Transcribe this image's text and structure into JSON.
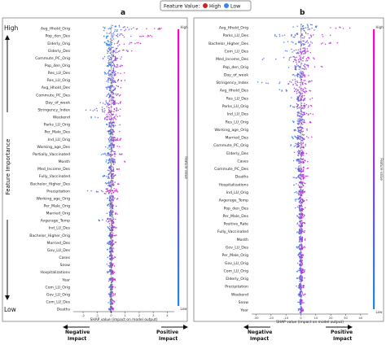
{
  "legend": {
    "title": "Feature Value:",
    "items": [
      {
        "label": "High",
        "color": "#d61f1f"
      },
      {
        "label": "Low",
        "color": "#3b82f6"
      }
    ]
  },
  "importance_axis": {
    "high": "High",
    "title": "Feature Importance",
    "low": "Low"
  },
  "impact_labels": {
    "negative": [
      "Negative",
      "Impact"
    ],
    "positive": [
      "Positive",
      "Impact"
    ]
  },
  "colors": {
    "high": "#ff00cc",
    "low": "#1e88e5"
  },
  "chart_data": [
    {
      "panel": "a",
      "type": "scatter",
      "subtype": "shap-beeswarm",
      "xlabel": "SHAP value (impact on model output)",
      "xticks": [
        "-2",
        "-1",
        "0",
        "1",
        "2",
        "3",
        "4"
      ],
      "xlim": [
        -2.7,
        4.5
      ],
      "colorbar": {
        "label": "Feature value",
        "high": "High",
        "low": "Low"
      },
      "features": [
        {
          "name": "Avg_Hhold_Orig",
          "min": -0.7,
          "max": 4.0
        },
        {
          "name": "Pop_den_Des",
          "min": -0.6,
          "max": 3.0
        },
        {
          "name": "Elderly_Orig",
          "min": -0.6,
          "max": 2.2
        },
        {
          "name": "Elderly_Des",
          "min": -0.6,
          "max": 1.6
        },
        {
          "name": "Commute_PC_Orig",
          "min": -0.6,
          "max": 1.3
        },
        {
          "name": "Pop_den_Orig",
          "min": -0.6,
          "max": 1.3
        },
        {
          "name": "Res_LU_Des",
          "min": -0.5,
          "max": 1.1
        },
        {
          "name": "Res_LU_Orig",
          "min": -0.5,
          "max": 1.0
        },
        {
          "name": "Avg_Hhold_Des",
          "min": -0.5,
          "max": 1.0
        },
        {
          "name": "Commute_PC_Des",
          "min": -0.5,
          "max": 0.8
        },
        {
          "name": "Day_of_week",
          "min": -1.0,
          "max": 0.8
        },
        {
          "name": "Stringency_Index",
          "min": -2.3,
          "max": 1.0
        },
        {
          "name": "Weekend",
          "min": -1.6,
          "max": 0.8
        },
        {
          "name": "Parks_LU_Orig",
          "min": -0.4,
          "max": 0.7
        },
        {
          "name": "Per_Male_Des",
          "min": -0.4,
          "max": 0.7
        },
        {
          "name": "Ind_LU_Orig",
          "min": -0.4,
          "max": 0.7
        },
        {
          "name": "Working_age_Des",
          "min": -0.4,
          "max": 0.7
        },
        {
          "name": "Partially_Vaccinated",
          "min": -0.7,
          "max": 0.8
        },
        {
          "name": "Month",
          "min": -0.4,
          "max": 1.0
        },
        {
          "name": "Med_Income_Des",
          "min": -0.4,
          "max": 0.6
        },
        {
          "name": "Fully_Vaccinated",
          "min": -0.6,
          "max": 0.6
        },
        {
          "name": "Bachelor_Higher_Des",
          "min": -0.4,
          "max": 0.6
        },
        {
          "name": "Precipitation",
          "min": -1.8,
          "max": 0.5
        },
        {
          "name": "Working_age_Orig",
          "min": -0.3,
          "max": 0.5
        },
        {
          "name": "Per_Male_Orig",
          "min": -0.3,
          "max": 0.5
        },
        {
          "name": "Married_Orig",
          "min": -0.3,
          "max": 0.5
        },
        {
          "name": "Avgerage_Temp",
          "min": -0.9,
          "max": 0.5
        },
        {
          "name": "Ind_LU_Des",
          "min": -0.3,
          "max": 0.4
        },
        {
          "name": "Bachelor_Higher_Orig",
          "min": -0.3,
          "max": 0.4
        },
        {
          "name": "Married_Des",
          "min": -0.3,
          "max": 0.4
        },
        {
          "name": "Gov_LU_Des",
          "min": -0.3,
          "max": 0.4
        },
        {
          "name": "Cases",
          "min": -0.3,
          "max": 0.3
        },
        {
          "name": "Snow",
          "min": -0.3,
          "max": 0.3
        },
        {
          "name": "Hospitalizations",
          "min": -0.3,
          "max": 0.3
        },
        {
          "name": "Year",
          "min": -0.3,
          "max": 0.3
        },
        {
          "name": "Com_LU_Orig",
          "min": -0.2,
          "max": 0.3
        },
        {
          "name": "Gov_LU_Orig",
          "min": -0.2,
          "max": 0.3
        },
        {
          "name": "Com_LU_Des",
          "min": -0.2,
          "max": 0.3
        },
        {
          "name": "Deaths",
          "min": -0.2,
          "max": 0.2
        }
      ]
    },
    {
      "panel": "b",
      "type": "scatter",
      "subtype": "shap-beeswarm",
      "xlabel": "SHAP value (impact on model output)",
      "xticks": [
        "-30",
        "-20",
        "-10",
        "0",
        "10",
        "20",
        "30",
        "40"
      ],
      "xlim": [
        -33,
        45
      ],
      "colorbar": {
        "label": "Feature value",
        "high": "High",
        "low": "Low"
      },
      "features": [
        {
          "name": "Avg_Hhold_Orig",
          "min": -6,
          "max": 40
        },
        {
          "name": "Parks_LU_Des",
          "min": -18,
          "max": 22
        },
        {
          "name": "Bachelor_Higher_Des",
          "min": -15,
          "max": 25
        },
        {
          "name": "Com_LU_Des",
          "min": -15,
          "max": 15
        },
        {
          "name": "Med_Income_Des",
          "min": -28,
          "max": 12
        },
        {
          "name": "Pop_den_Orig",
          "min": -12,
          "max": 15
        },
        {
          "name": "Day_of_week",
          "min": -6,
          "max": 8
        },
        {
          "name": "Stringency_Index",
          "min": -30,
          "max": 15
        },
        {
          "name": "Avg_Hhold_Des",
          "min": -15,
          "max": 8
        },
        {
          "name": "Res_LU_Des",
          "min": -8,
          "max": 8
        },
        {
          "name": "Parks_LU_Orig",
          "min": -8,
          "max": 8
        },
        {
          "name": "Ind_LU_Des",
          "min": -6,
          "max": 8
        },
        {
          "name": "Res_LU_Orig",
          "min": -6,
          "max": 8
        },
        {
          "name": "Working_age_Orig",
          "min": -6,
          "max": 6
        },
        {
          "name": "Married_Des",
          "min": -6,
          "max": 8
        },
        {
          "name": "Commute_PC_Orig",
          "min": -8,
          "max": 6
        },
        {
          "name": "Elderly_Des",
          "min": -6,
          "max": 5
        },
        {
          "name": "Cases",
          "min": -5,
          "max": 5
        },
        {
          "name": "Commute_PC_Des",
          "min": -5,
          "max": 5
        },
        {
          "name": "Deaths",
          "min": -6,
          "max": 5
        },
        {
          "name": "Hospitalizations",
          "min": -5,
          "max": 4
        },
        {
          "name": "Ind_LU_Orig",
          "min": -5,
          "max": 4
        },
        {
          "name": "Avgerage_Temp",
          "min": -4,
          "max": 4
        },
        {
          "name": "Pop_den_Des",
          "min": -4,
          "max": 4
        },
        {
          "name": "Per_Male_Des",
          "min": -4,
          "max": 3
        },
        {
          "name": "Positive_Rate",
          "min": -4,
          "max": 3
        },
        {
          "name": "Fully_Vaccinated",
          "min": -3,
          "max": 3
        },
        {
          "name": "Month",
          "min": -3,
          "max": 3
        },
        {
          "name": "Gov_LU_Des",
          "min": -3,
          "max": 3
        },
        {
          "name": "Per_Male_Orig",
          "min": -3,
          "max": 3
        },
        {
          "name": "Gov_LU_Orig",
          "min": -3,
          "max": 3
        },
        {
          "name": "Com_LU_Orig",
          "min": -3,
          "max": 3
        },
        {
          "name": "Elderly_Orig",
          "min": -3,
          "max": 3
        },
        {
          "name": "Precipitation",
          "min": -3,
          "max": 3
        },
        {
          "name": "Weekend",
          "min": -2,
          "max": 3
        },
        {
          "name": "Snow",
          "min": -2,
          "max": 2
        },
        {
          "name": "Year",
          "min": -2,
          "max": 2
        }
      ]
    }
  ]
}
